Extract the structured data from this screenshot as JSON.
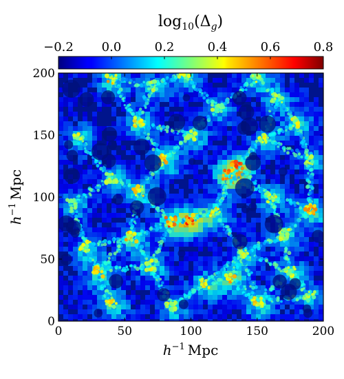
{
  "chart_data": {
    "type": "heatmap",
    "title": "",
    "colorbar": {
      "label": "log10(Δg)",
      "label_main": "log",
      "label_sub": "10",
      "label_args": "(Δ",
      "label_args_sub": "g",
      "label_close": ")",
      "min": -0.2,
      "max": 0.8,
      "ticks": [
        "−0.2",
        "0.0",
        "0.2",
        "0.4",
        "0.6",
        "0.8"
      ],
      "tick_values": [
        -0.2,
        0.0,
        0.2,
        0.4,
        0.6,
        0.8
      ],
      "colormap": "jet",
      "position": "top"
    },
    "xlabel": "h−1 Mpc",
    "xlabel_h": "h",
    "xlabel_sup": "−1",
    "xlabel_unit": "Mpc",
    "ylabel": "h−1 Mpc",
    "ylabel_h": "h",
    "ylabel_sup": "−1",
    "ylabel_unit": "Mpc",
    "xlim": [
      0,
      200
    ],
    "ylim": [
      0,
      200
    ],
    "xticks": [
      "0",
      "50",
      "100",
      "150",
      "200"
    ],
    "xtick_values": [
      0,
      50,
      100,
      150,
      200
    ],
    "yticks": [
      "0",
      "50",
      "100",
      "150",
      "200"
    ],
    "ytick_values": [
      0,
      50,
      100,
      150,
      200
    ],
    "grid": false,
    "field_description": "galaxy overdensity slice showing cosmic web filaments",
    "nodes": [
      [
        40,
        195,
        0.55
      ],
      [
        95,
        198,
        0.45
      ],
      [
        150,
        196,
        0.4
      ],
      [
        180,
        160,
        0.45
      ],
      [
        60,
        160,
        0.5
      ],
      [
        120,
        172,
        0.4
      ],
      [
        15,
        148,
        0.45
      ],
      [
        100,
        150,
        0.5
      ],
      [
        155,
        148,
        0.45
      ],
      [
        190,
        130,
        0.4
      ],
      [
        80,
        130,
        0.55
      ],
      [
        128,
        118,
        0.7
      ],
      [
        135,
        125,
        0.65
      ],
      [
        40,
        115,
        0.45
      ],
      [
        60,
        105,
        0.5
      ],
      [
        160,
        100,
        0.45
      ],
      [
        190,
        90,
        0.6
      ],
      [
        85,
        80,
        0.65
      ],
      [
        100,
        82,
        0.7
      ],
      [
        118,
        88,
        0.5
      ],
      [
        55,
        68,
        0.55
      ],
      [
        20,
        60,
        0.45
      ],
      [
        170,
        70,
        0.45
      ],
      [
        140,
        55,
        0.45
      ],
      [
        30,
        40,
        0.55
      ],
      [
        70,
        45,
        0.45
      ],
      [
        110,
        30,
        0.5
      ],
      [
        130,
        35,
        0.55
      ],
      [
        175,
        40,
        0.45
      ],
      [
        40,
        15,
        0.5
      ],
      [
        85,
        12,
        0.45
      ],
      [
        150,
        15,
        0.55
      ],
      [
        190,
        20,
        0.4
      ],
      [
        10,
        95,
        0.4
      ],
      [
        165,
        180,
        0.4
      ],
      [
        70,
        190,
        0.4
      ]
    ]
  }
}
